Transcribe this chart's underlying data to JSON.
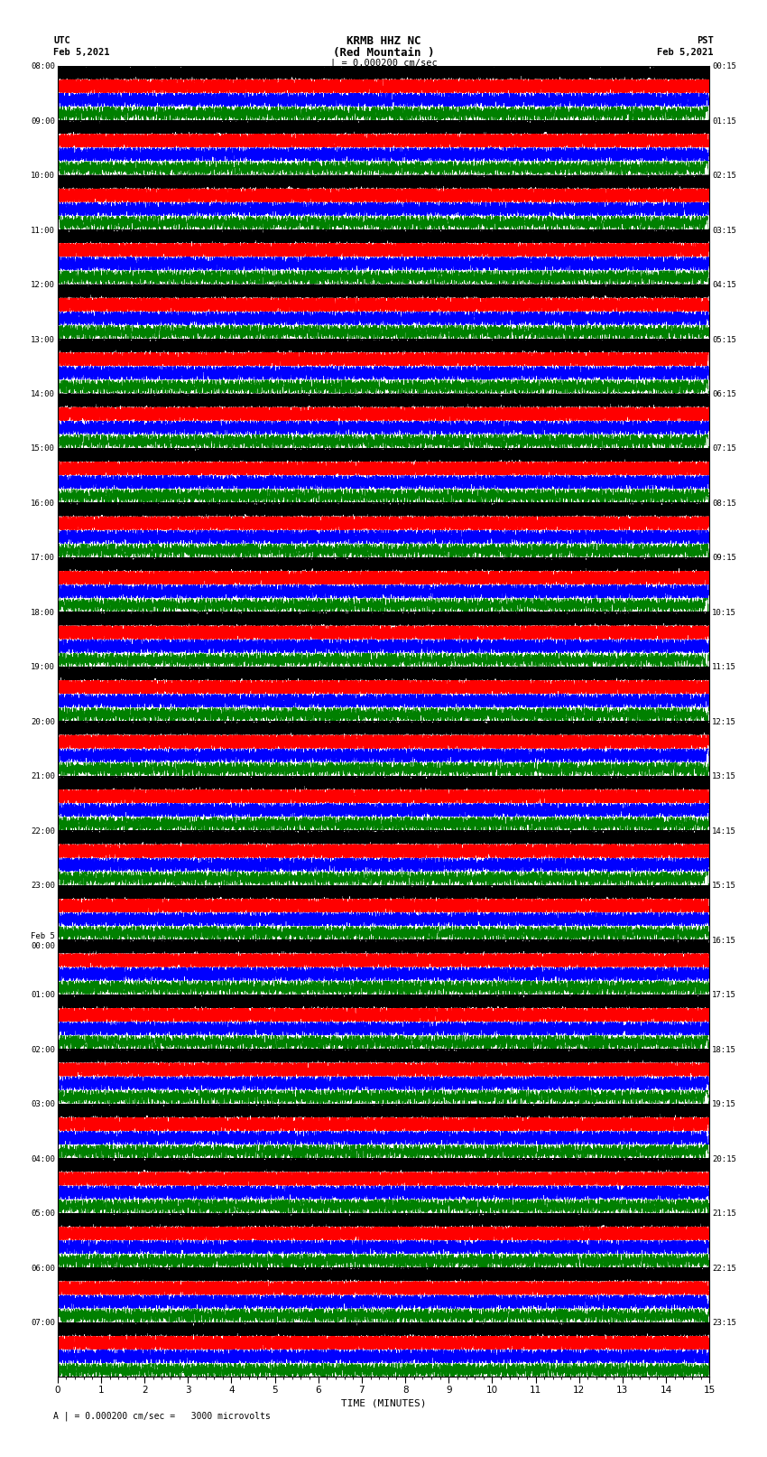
{
  "title_line1": "KRMB HHZ NC",
  "title_line2": "(Red Mountain )",
  "scale_label": "| = 0.000200 cm/sec",
  "utc_label1": "UTC",
  "utc_label2": "Feb 5,2021",
  "pst_label1": "PST",
  "pst_label2": "Feb 5,2021",
  "bottom_label": "A | = 0.000200 cm/sec =   3000 microvolts",
  "xlabel": "TIME (MINUTES)",
  "left_times_utc": [
    "08:00",
    "09:00",
    "10:00",
    "11:00",
    "12:00",
    "13:00",
    "14:00",
    "15:00",
    "16:00",
    "17:00",
    "18:00",
    "19:00",
    "20:00",
    "21:00",
    "22:00",
    "23:00",
    "Feb 5\n00:00",
    "01:00",
    "02:00",
    "03:00",
    "04:00",
    "05:00",
    "06:00",
    "07:00"
  ],
  "right_times_pst": [
    "00:15",
    "01:15",
    "02:15",
    "03:15",
    "04:15",
    "05:15",
    "06:15",
    "07:15",
    "08:15",
    "09:15",
    "10:15",
    "11:15",
    "12:15",
    "13:15",
    "14:15",
    "15:15",
    "16:15",
    "17:15",
    "18:15",
    "19:15",
    "20:15",
    "21:15",
    "22:15",
    "23:15"
  ],
  "num_rows": 24,
  "traces_per_row": 4,
  "trace_colors": [
    "#000000",
    "#ff0000",
    "#0000ff",
    "#008000"
  ],
  "segment_minutes": 15,
  "background_color": "#ffffff",
  "fig_width": 8.5,
  "fig_height": 16.13
}
